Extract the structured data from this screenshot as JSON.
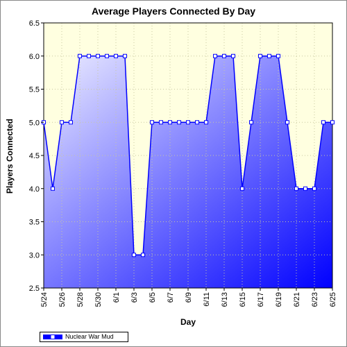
{
  "chart_data": {
    "type": "area",
    "title": "Average Players Connected By Day",
    "xlabel": "Day",
    "ylabel": "Players Connected",
    "ylim": [
      2.5,
      6.5
    ],
    "yticks": [
      "2.5",
      "3.0",
      "3.5",
      "4.0",
      "4.5",
      "5.0",
      "5.5",
      "6.0",
      "6.5"
    ],
    "grid": true,
    "legend_position": "bottom-left",
    "colors": {
      "plot_background": "#ffffe0",
      "line": "#0000ff",
      "fill_light": "#eeeeff",
      "fill_dark": "#0000ff",
      "grid": "#c8c8a0"
    },
    "categories": [
      "5/24",
      "5/25",
      "5/26",
      "5/27",
      "5/28",
      "5/29",
      "5/30",
      "5/31",
      "6/1",
      "6/2",
      "6/3",
      "6/4",
      "6/5",
      "6/6",
      "6/7",
      "6/8",
      "6/9",
      "6/10",
      "6/11",
      "6/12",
      "6/13",
      "6/14",
      "6/15",
      "6/16",
      "6/17",
      "6/18",
      "6/19",
      "6/20",
      "6/21",
      "6/22",
      "6/23",
      "6/24",
      "6/25"
    ],
    "tick_labels": [
      "5/24",
      "5/26",
      "5/28",
      "5/30",
      "6/1",
      "6/3",
      "6/5",
      "6/7",
      "6/9",
      "6/11",
      "6/13",
      "6/15",
      "6/17",
      "6/19",
      "6/21",
      "6/23",
      "6/25"
    ],
    "series": [
      {
        "name": "Nuclear War Mud",
        "values": [
          5,
          4,
          5,
          5,
          6,
          6,
          6,
          6,
          6,
          6,
          3,
          3,
          5,
          5,
          5,
          5,
          5,
          5,
          5,
          6,
          6,
          6,
          4,
          5,
          6,
          6,
          6,
          5,
          4,
          4,
          4,
          5,
          5
        ]
      }
    ]
  }
}
